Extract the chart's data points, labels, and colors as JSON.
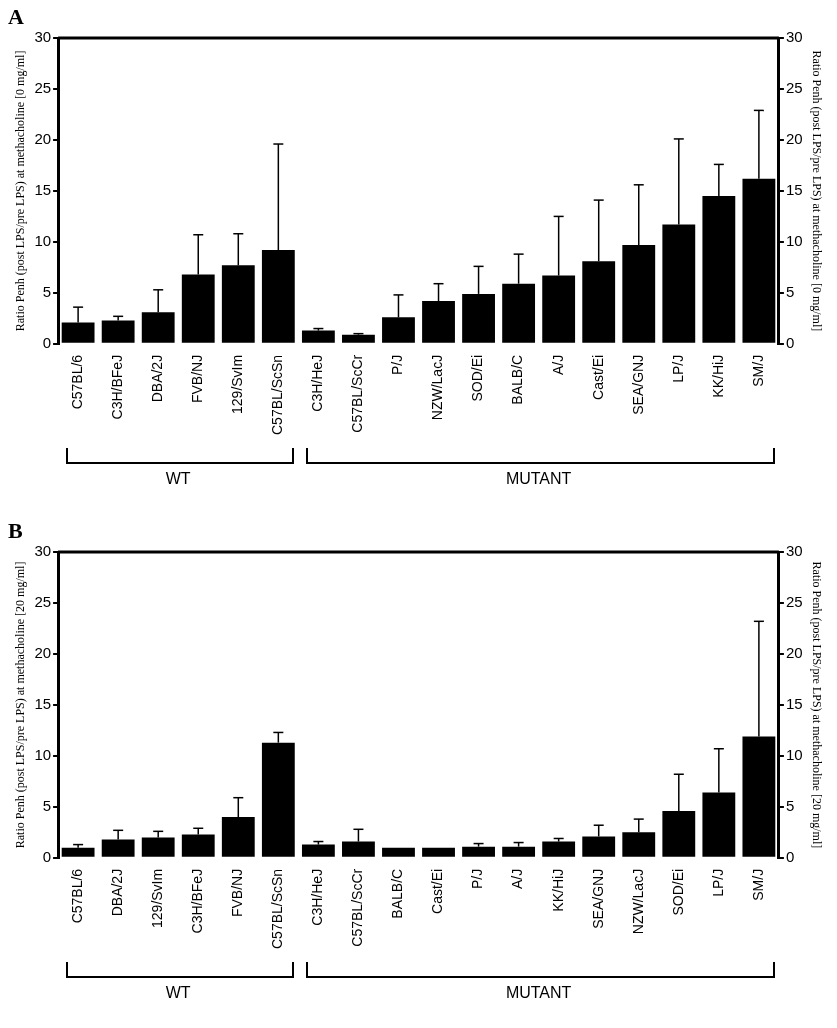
{
  "chart_data": [
    {
      "type": "bar",
      "title": "A",
      "ylabel": "Ratio Penh (post LPS/pre LPS) at methacholine [0 mg/ml]",
      "y2label": "Ratio Penh (post LPS/pre LPS) at methacholine [0 mg/ml]",
      "categories": [
        "C57BL/6",
        "C3H/BFeJ",
        "DBA/2J",
        "FVB/NJ",
        "129/SvIm",
        "C57BL/ScSn",
        "C3H/HeJ",
        "C57BL/ScCr",
        "P/J",
        "NZW/LacJ",
        "SOD/Ei",
        "BALB/C",
        "A/J",
        "Cast/Ei",
        "SEA/GNJ",
        "LP/J",
        "KK/HiJ",
        "SM/J"
      ],
      "values": [
        2.1,
        2.3,
        3.1,
        6.8,
        7.7,
        9.2,
        1.3,
        0.9,
        2.6,
        4.2,
        4.9,
        5.9,
        6.7,
        8.1,
        9.7,
        11.7,
        14.5,
        16.2
      ],
      "errors": [
        [
          2.1,
          3.6
        ],
        [
          2.3,
          2.7
        ],
        [
          3.1,
          5.3
        ],
        [
          6.8,
          10.7
        ],
        [
          7.7,
          10.8
        ],
        [
          9.2,
          19.6
        ],
        [
          1.3,
          1.5
        ],
        [
          0.9,
          1.0
        ],
        [
          2.6,
          4.8
        ],
        [
          4.2,
          5.9
        ],
        [
          4.9,
          7.6
        ],
        [
          5.9,
          8.8
        ],
        [
          6.7,
          12.5
        ],
        [
          8.1,
          14.1
        ],
        [
          9.7,
          15.6
        ],
        [
          11.7,
          20.1
        ],
        [
          14.5,
          17.6
        ],
        [
          16.2,
          22.9
        ]
      ],
      "color": "#000000",
      "ylim": [
        0,
        30
      ],
      "yticks": [
        0,
        5,
        10,
        15,
        20,
        25,
        30
      ],
      "y2lim": [
        0,
        30
      ],
      "y2ticks": [
        0,
        5,
        10,
        15,
        20,
        25,
        30
      ],
      "annotations": [
        "WT",
        "MUTANT"
      ]
    },
    {
      "type": "bar",
      "title": "B",
      "ylabel": "Ratio Penh (post LPS/pre LPS) at methacholine [20 mg/ml]",
      "y2label": "Ratio Penh (post LPS/pre LPS) at methacholine [20 mg/ml]",
      "categories": [
        "C57BL/6",
        "DBA/2J",
        "129/SvIm",
        "C3H/BFeJ",
        "FVB/NJ",
        "C57BL/ScSn",
        "C3H/HeJ",
        "C57BL/ScCr",
        "BALB/C",
        "Cast/Ei",
        "P/J",
        "A/J",
        "KK/HiJ",
        "SEA/GNJ",
        "NZW/LacJ",
        "SOD/Ei",
        "LP/J",
        "SM/J"
      ],
      "values": [
        1.0,
        1.8,
        2.0,
        2.3,
        4.0,
        11.3,
        1.3,
        1.6,
        1.0,
        1.0,
        1.1,
        1.1,
        1.6,
        2.1,
        2.5,
        4.6,
        6.4,
        11.9
      ],
      "errors": [
        [
          1.0,
          1.3
        ],
        [
          1.8,
          2.7
        ],
        [
          2.0,
          2.6
        ],
        [
          2.3,
          2.9
        ],
        [
          4.0,
          5.9
        ],
        [
          11.3,
          12.3
        ],
        [
          1.3,
          1.6
        ],
        [
          1.6,
          2.8
        ],
        null,
        null,
        [
          1.1,
          1.4
        ],
        [
          1.1,
          1.5
        ],
        [
          1.6,
          1.9
        ],
        [
          2.1,
          3.2
        ],
        [
          2.5,
          3.8
        ],
        [
          4.6,
          8.2
        ],
        [
          6.4,
          10.7
        ],
        [
          11.9,
          23.2
        ]
      ],
      "color": "#000000",
      "ylim": [
        0,
        30
      ],
      "yticks": [
        0,
        5,
        10,
        15,
        20,
        25,
        30
      ],
      "y2lim": [
        0,
        30
      ],
      "y2ticks": [
        0,
        5,
        10,
        15,
        20,
        25,
        30
      ],
      "annotations": [
        "WT",
        "MUTANT"
      ]
    }
  ]
}
